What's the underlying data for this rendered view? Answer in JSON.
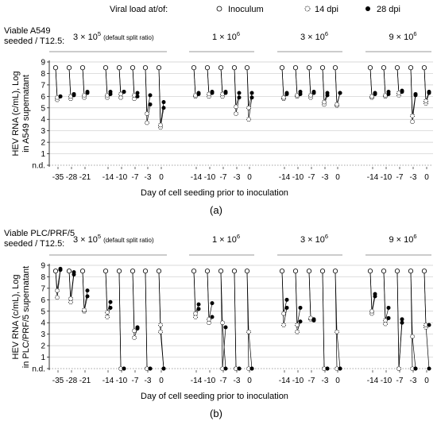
{
  "legend": {
    "label": "Viral load at/of:",
    "items": [
      {
        "name": "Inoculum",
        "marker": "open"
      },
      {
        "name": "14 dpi",
        "marker": "dotted"
      },
      {
        "name": "28 dpi",
        "marker": "filled"
      }
    ]
  },
  "shared": {
    "xlabel": "Day of cell seeding prior to inoculation",
    "group_titles": [
      {
        "base": "3 × 10",
        "exp": "5",
        "note": "(default split ratio)"
      },
      {
        "base": "1 × 10",
        "exp": "6",
        "note": ""
      },
      {
        "base": "3 × 10",
        "exp": "6",
        "note": ""
      },
      {
        "base": "9 × 10",
        "exp": "6",
        "note": ""
      }
    ],
    "y_ticks": [
      "9",
      "8",
      "7",
      "6",
      "5",
      "4",
      "3",
      "2",
      "1",
      "n.d."
    ],
    "colors": {
      "gridline": "#cccccc",
      "bracket": "#999999",
      "ink": "#000000"
    }
  },
  "chart_data": [
    {
      "id": "a",
      "type": "scatter",
      "caption": "(a)",
      "cell_label": [
        "Viable A549",
        "seeded / T12.5:"
      ],
      "ylabel": [
        "HEV RNA (c/mL), Log",
        "in A549 supernatant"
      ],
      "ylim": [
        "n.d.",
        9
      ],
      "groups": [
        {
          "title_index": 0,
          "ticks": [
            "-35",
            "-28",
            "-21",
            "-14",
            "-10",
            "-7",
            "-3",
            "0"
          ]
        },
        {
          "title_index": 1,
          "ticks": [
            "-14",
            "-10",
            "-7",
            "-3",
            "0"
          ]
        },
        {
          "title_index": 2,
          "ticks": [
            "-14",
            "-10",
            "-7",
            "-3",
            "0"
          ]
        },
        {
          "title_index": 3,
          "ticks": [
            "-14",
            "-10",
            "-7",
            "-3",
            "0"
          ]
        }
      ],
      "points": [
        {
          "group": 0,
          "day": -35,
          "inoculum": 8.5,
          "dpi14": [
            5.7,
            5.9
          ],
          "dpi28": [
            6.0,
            6.0
          ]
        },
        {
          "group": 0,
          "day": -28,
          "inoculum": 8.5,
          "dpi14": [
            5.8,
            6.0
          ],
          "dpi28": [
            6.1,
            6.2
          ]
        },
        {
          "group": 0,
          "day": -21,
          "inoculum": 8.5,
          "dpi14": [
            5.9,
            6.1
          ],
          "dpi28": [
            6.3,
            6.4
          ]
        },
        {
          "group": 0,
          "day": -14,
          "inoculum": 8.5,
          "dpi14": [
            5.9,
            6.1
          ],
          "dpi28": [
            6.2,
            6.4
          ]
        },
        {
          "group": 0,
          "day": -10,
          "inoculum": 8.5,
          "dpi14": [
            5.9,
            6.2
          ],
          "dpi28": [
            6.4,
            6.4
          ]
        },
        {
          "group": 0,
          "day": -7,
          "inoculum": 8.5,
          "dpi14": [
            5.8,
            6.1
          ],
          "dpi28": [
            6.0,
            6.3
          ]
        },
        {
          "group": 0,
          "day": -3,
          "inoculum": 8.5,
          "dpi14": [
            3.7,
            4.5
          ],
          "dpi28": [
            5.3,
            6.1
          ]
        },
        {
          "group": 0,
          "day": 0,
          "inoculum": 8.5,
          "dpi14": [
            3.3,
            3.5
          ],
          "dpi28": [
            5.0,
            5.5
          ]
        },
        {
          "group": 1,
          "day": -14,
          "inoculum": 8.5,
          "dpi14": [
            6.0,
            6.1
          ],
          "dpi28": [
            6.2,
            6.3
          ]
        },
        {
          "group": 1,
          "day": -10,
          "inoculum": 8.5,
          "dpi14": [
            6.0,
            6.2
          ],
          "dpi28": [
            6.3,
            6.4
          ]
        },
        {
          "group": 1,
          "day": -7,
          "inoculum": 8.5,
          "dpi14": [
            6.0,
            6.2
          ],
          "dpi28": [
            6.3,
            6.4
          ]
        },
        {
          "group": 1,
          "day": -3,
          "inoculum": 8.5,
          "dpi14": [
            4.5,
            5.1
          ],
          "dpi28": [
            5.9,
            6.3
          ]
        },
        {
          "group": 1,
          "day": 0,
          "inoculum": 8.5,
          "dpi14": [
            4.0,
            5.0
          ],
          "dpi28": [
            5.9,
            6.3
          ]
        },
        {
          "group": 2,
          "day": -14,
          "inoculum": 8.5,
          "dpi14": [
            5.8,
            5.9
          ],
          "dpi28": [
            6.2,
            6.3
          ]
        },
        {
          "group": 2,
          "day": -10,
          "inoculum": 8.5,
          "dpi14": [
            6.0,
            6.1
          ],
          "dpi28": [
            6.2,
            6.4
          ]
        },
        {
          "group": 2,
          "day": -7,
          "inoculum": 8.5,
          "dpi14": [
            5.9,
            6.1
          ],
          "dpi28": [
            6.3,
            6.4
          ]
        },
        {
          "group": 2,
          "day": -3,
          "inoculum": 8.5,
          "dpi14": [
            5.3,
            5.5
          ],
          "dpi28": [
            6.1,
            6.3
          ]
        },
        {
          "group": 2,
          "day": 0,
          "inoculum": 8.5,
          "dpi14": [
            5.2,
            5.3
          ],
          "dpi28": [
            6.3,
            6.3
          ]
        },
        {
          "group": 3,
          "day": -14,
          "inoculum": 8.5,
          "dpi14": [
            5.9,
            6.0
          ],
          "dpi28": [
            6.2,
            6.3
          ]
        },
        {
          "group": 3,
          "day": -10,
          "inoculum": 8.5,
          "dpi14": [
            6.0,
            6.1
          ],
          "dpi28": [
            6.2,
            6.4
          ]
        },
        {
          "group": 3,
          "day": -7,
          "inoculum": 8.5,
          "dpi14": [
            6.1,
            6.3
          ],
          "dpi28": [
            6.4,
            6.5
          ]
        },
        {
          "group": 3,
          "day": -3,
          "inoculum": 8.5,
          "dpi14": [
            3.8,
            4.3
          ],
          "dpi28": [
            6.1,
            6.2
          ]
        },
        {
          "group": 3,
          "day": 0,
          "inoculum": 8.5,
          "dpi14": [
            5.4,
            5.6
          ],
          "dpi28": [
            6.3,
            6.4
          ]
        }
      ]
    },
    {
      "id": "b",
      "type": "scatter",
      "caption": "(b)",
      "cell_label": [
        "Viable PLC/PRF/5",
        "seeded / T12.5:"
      ],
      "ylabel": [
        "HEV RNA (c/mL), Log",
        "in PLC/PRF/5 supernatant"
      ],
      "ylim": [
        "n.d.",
        9
      ],
      "groups": [
        {
          "title_index": 0,
          "ticks": [
            "-35",
            "-28",
            "-21",
            "-14",
            "-10",
            "-7",
            "-3",
            "0"
          ]
        },
        {
          "title_index": 1,
          "ticks": [
            "-14",
            "-10",
            "-7",
            "-3",
            "0"
          ]
        },
        {
          "title_index": 2,
          "ticks": [
            "-14",
            "-10",
            "-7",
            "-3",
            "0"
          ]
        },
        {
          "title_index": 3,
          "ticks": [
            "-14",
            "-10",
            "-7",
            "-3",
            "0"
          ]
        }
      ],
      "points": [
        {
          "group": 0,
          "day": -35,
          "inoculum": 8.5,
          "dpi14": [
            6.2,
            6.8
          ],
          "dpi28": [
            8.6,
            8.7
          ]
        },
        {
          "group": 0,
          "day": -28,
          "inoculum": 8.5,
          "dpi14": [
            5.8,
            6.1
          ],
          "dpi28": [
            8.2,
            8.4
          ]
        },
        {
          "group": 0,
          "day": -21,
          "inoculum": 8.5,
          "dpi14": [
            5.0,
            5.1
          ],
          "dpi28": [
            6.3,
            6.8
          ]
        },
        {
          "group": 0,
          "day": -14,
          "inoculum": 8.5,
          "dpi14": [
            4.5,
            4.9
          ],
          "dpi28": [
            5.3,
            5.8
          ]
        },
        {
          "group": 0,
          "day": -10,
          "inoculum": 8.5,
          "dpi14": [
            "n.d.",
            "n.d."
          ],
          "dpi28": [
            "n.d.",
            "n.d."
          ]
        },
        {
          "group": 0,
          "day": -7,
          "inoculum": 8.5,
          "dpi14": [
            2.7,
            3.3
          ],
          "dpi28": [
            3.5,
            3.6
          ]
        },
        {
          "group": 0,
          "day": -3,
          "inoculum": 8.5,
          "dpi14": [
            "n.d.",
            "n.d."
          ],
          "dpi28": [
            "n.d.",
            "n.d."
          ]
        },
        {
          "group": 0,
          "day": 0,
          "inoculum": 8.5,
          "dpi14": [
            3.2,
            3.8
          ],
          "dpi28": [
            "n.d.",
            "n.d."
          ]
        },
        {
          "group": 1,
          "day": -14,
          "inoculum": 8.5,
          "dpi14": [
            4.5,
            4.8
          ],
          "dpi28": [
            5.2,
            5.6
          ]
        },
        {
          "group": 1,
          "day": -10,
          "inoculum": 8.5,
          "dpi14": [
            4.0,
            4.3
          ],
          "dpi28": [
            4.5,
            5.7
          ]
        },
        {
          "group": 1,
          "day": -7,
          "inoculum": 8.5,
          "dpi14": [
            "n.d.",
            4.0
          ],
          "dpi28": [
            3.6,
            "n.d."
          ]
        },
        {
          "group": 1,
          "day": -3,
          "inoculum": 8.5,
          "dpi14": [
            "n.d.",
            "n.d."
          ],
          "dpi28": [
            "n.d.",
            "n.d."
          ]
        },
        {
          "group": 1,
          "day": 0,
          "inoculum": 8.5,
          "dpi14": [
            3.2,
            "n.d."
          ],
          "dpi28": [
            "n.d.",
            "n.d."
          ]
        },
        {
          "group": 2,
          "day": -14,
          "inoculum": 8.5,
          "dpi14": [
            3.8,
            4.8
          ],
          "dpi28": [
            5.3,
            6.0
          ]
        },
        {
          "group": 2,
          "day": -10,
          "inoculum": 8.5,
          "dpi14": [
            3.2,
            3.8
          ],
          "dpi28": [
            4.1,
            5.3
          ]
        },
        {
          "group": 2,
          "day": -7,
          "inoculum": 8.5,
          "dpi14": [
            4.3,
            4.4
          ],
          "dpi28": [
            4.2,
            4.3
          ]
        },
        {
          "group": 2,
          "day": -3,
          "inoculum": 8.5,
          "dpi14": [
            "n.d.",
            "n.d."
          ],
          "dpi28": [
            "n.d.",
            "n.d."
          ]
        },
        {
          "group": 2,
          "day": 0,
          "inoculum": 8.5,
          "dpi14": [
            3.2,
            "n.d."
          ],
          "dpi28": [
            "n.d.",
            "n.d."
          ]
        },
        {
          "group": 3,
          "day": -14,
          "inoculum": 8.5,
          "dpi14": [
            4.8,
            5.0
          ],
          "dpi28": [
            6.3,
            6.5
          ]
        },
        {
          "group": 3,
          "day": -10,
          "inoculum": 8.5,
          "dpi14": [
            3.9,
            4.2
          ],
          "dpi28": [
            4.4,
            5.3
          ]
        },
        {
          "group": 3,
          "day": -7,
          "inoculum": 8.5,
          "dpi14": [
            "n.d.",
            "n.d."
          ],
          "dpi28": [
            4.0,
            4.3
          ]
        },
        {
          "group": 3,
          "day": -3,
          "inoculum": 8.5,
          "dpi14": [
            2.8,
            "n.d."
          ],
          "dpi28": [
            "n.d.",
            "n.d."
          ]
        },
        {
          "group": 3,
          "day": 0,
          "inoculum": 8.5,
          "dpi14": [
            3.6,
            3.8
          ],
          "dpi28": [
            3.8,
            "n.d."
          ]
        }
      ]
    }
  ]
}
